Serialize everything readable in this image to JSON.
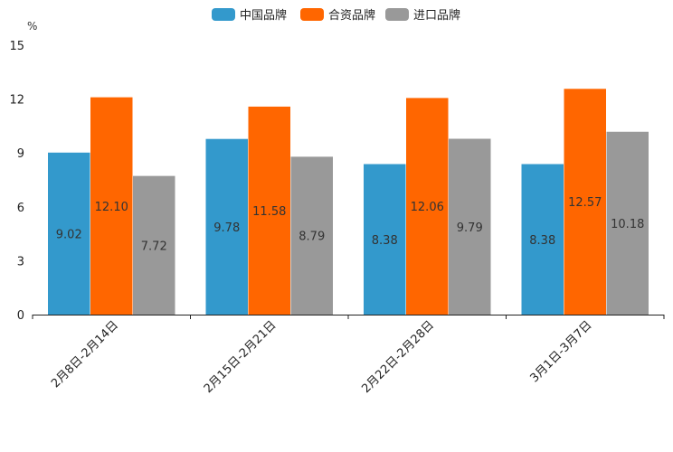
{
  "chart_data": {
    "type": "bar",
    "title": "",
    "xlabel": "",
    "ylabel": "%",
    "ylim": [
      0,
      15
    ],
    "yticks": [
      0,
      3,
      6,
      9,
      12,
      15
    ],
    "categories": [
      "2月8日-2月14日",
      "2月15日-2月21日",
      "2月22日-2月28日",
      "3月1日-3月7日"
    ],
    "series": [
      {
        "name": "中国品牌",
        "color": "#3399cc",
        "values": [
          9.02,
          9.78,
          8.38,
          8.38
        ],
        "labels": [
          "9.02",
          "9.78",
          "8.38",
          "8.38"
        ]
      },
      {
        "name": "合资品牌",
        "color": "#ff6600",
        "values": [
          12.1,
          11.58,
          12.06,
          12.57
        ],
        "labels": [
          "12.10",
          "11.58",
          "12.06",
          "12.57"
        ]
      },
      {
        "name": "进口品牌",
        "color": "#999999",
        "values": [
          7.72,
          8.79,
          9.79,
          10.18
        ],
        "labels": [
          "7.72",
          "8.79",
          "9.79",
          "10.18"
        ]
      }
    ],
    "legend_position": "top-center",
    "grid": false
  }
}
